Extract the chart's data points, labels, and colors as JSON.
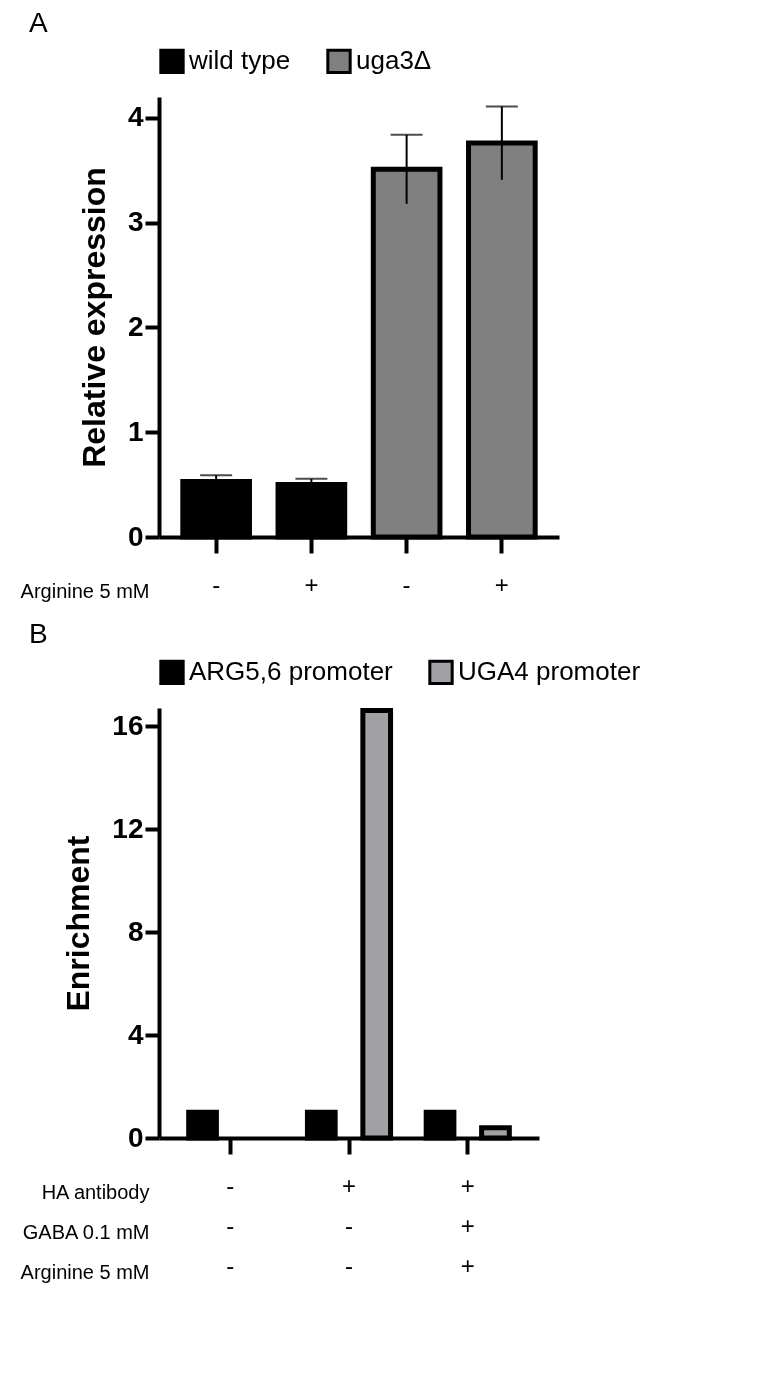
{
  "chart_data": [
    {
      "type": "bar",
      "title": "A",
      "ylabel": "Relative expression",
      "xlabel": "Arginine 5 mM",
      "categories": [
        "-",
        "+",
        "-",
        "+"
      ],
      "ylim": [
        0,
        4.2
      ],
      "yticks": [
        0,
        1,
        2,
        3,
        4
      ],
      "legend": "top",
      "grid": false,
      "series": [
        {
          "name": "wild type",
          "color": "#000000",
          "values": [
            0.53,
            0.5,
            null,
            null
          ],
          "errors": [
            0.06,
            0.055,
            null,
            null
          ]
        },
        {
          "name": "uga3Δ",
          "color": "#808080",
          "values": [
            null,
            null,
            3.51,
            3.76
          ],
          "errors": [
            null,
            null,
            0.33,
            0.35
          ]
        }
      ]
    },
    {
      "type": "bar",
      "title": "B",
      "ylabel": "Enrichment",
      "xlabel": "HA antibody\nGABA 0.1 mM\nArginine 5 mM",
      "categories": [
        "-\n-\n-",
        "+\n-\n-",
        "+\n+\n+"
      ],
      "ylim": [
        0,
        16.7
      ],
      "yticks": [
        0,
        4,
        8,
        12,
        16
      ],
      "legend": "top",
      "grid": false,
      "series": [
        {
          "name": "ARG5,6 promoter",
          "color": "#000000",
          "values": [
            1,
            1,
            1
          ]
        },
        {
          "name": "UGA4 promoter",
          "color": "#a0a0a5",
          "values": [
            null,
            16.6,
            0.4
          ]
        }
      ]
    }
  ]
}
